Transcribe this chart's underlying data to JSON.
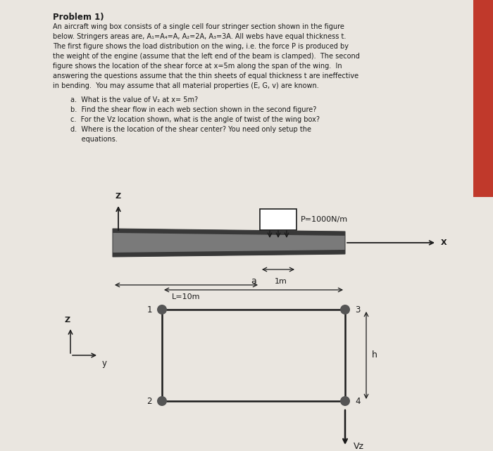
{
  "bg_color": "#d8d0c8",
  "white_area": "#f0ece6",
  "text_color": "#1a1a1a",
  "title": "Problem 1)",
  "problem_text_line1": "An aircraft wing box consists of a single cell four stringer section shown in the figure",
  "problem_text_line2": "below. Stringers areas are, A₁=A₄=A, A₂=2A, A₃=3A. All webs have equal thickness t.",
  "problem_text_line3": "The first figure shows the load distribution on the wing, i.e. the force P is produced by",
  "problem_text_line4": "the weight of the engine (assume that the left end of the beam is clamped).  The second",
  "problem_text_line5": "figure shows the location of the shear force at x=5m along the span of the wing.  In",
  "problem_text_line6": "answering the questions assume that the thin sheets of equal thickness t are ineffective",
  "problem_text_line7": "in bending.  You may assume that all material properties (E, G, v) are known.",
  "q_a": "a.  What is the value of V₂ at x= 5m?",
  "q_b": "b.  Find the shear flow in each web section shown in the second figure?",
  "q_c": "c.  For the Vz location shown, what is the angle of twist of the wing box?",
  "q_d": "d.  Where is the location of the shear center? You need only setup the",
  "q_d2": "     equations.",
  "wing_gray": "#808080",
  "wing_dark": "#484848",
  "wing_mid": "#606060",
  "dot_color": "#555555",
  "red_strip": "#c0392b"
}
